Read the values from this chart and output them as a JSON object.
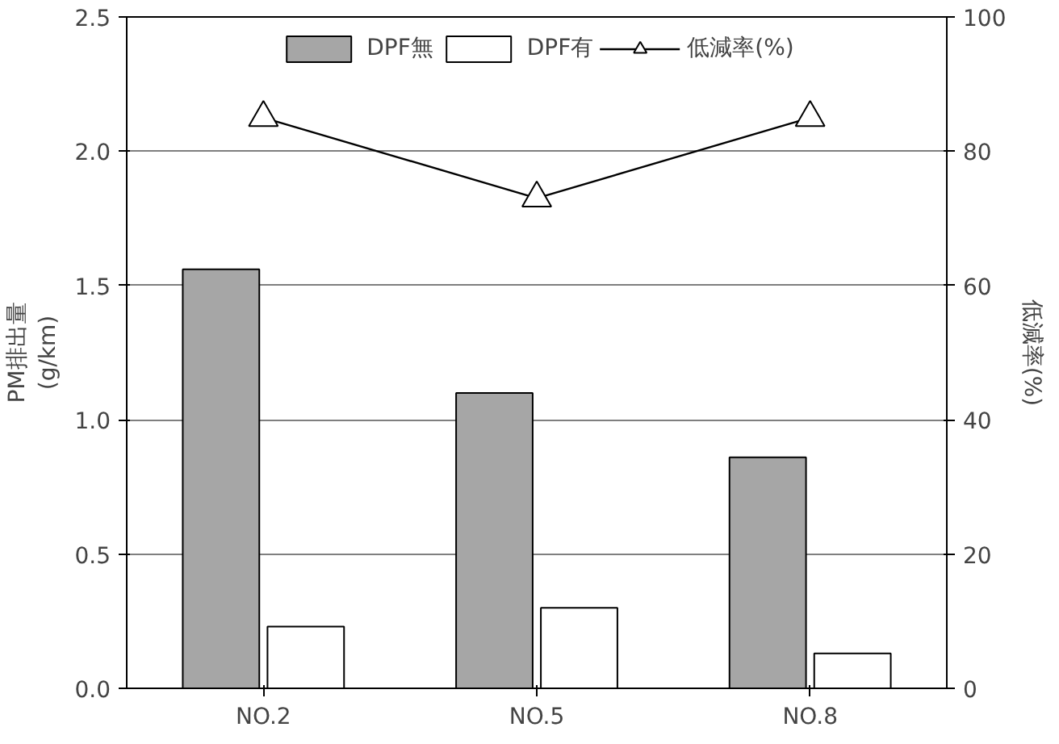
{
  "chart_data": {
    "type": "bar",
    "categories": [
      "NO.2",
      "NO.5",
      "NO.8"
    ],
    "ylabel": "PM排出量\n(g/km)",
    "y2label": "低減率(%)",
    "ylim": [
      0,
      2.5
    ],
    "yticks": [
      {
        "value": 0,
        "label": "0.0"
      },
      {
        "value": 0.5,
        "label": "0.5"
      },
      {
        "value": 1,
        "label": "1.0"
      },
      {
        "value": 1.5,
        "label": "1.5"
      },
      {
        "value": 2,
        "label": "2.0"
      },
      {
        "value": 2.5,
        "label": "2.5"
      }
    ],
    "y2lim": [
      0,
      100
    ],
    "y2ticks": [
      0,
      20,
      40,
      60,
      80,
      100
    ],
    "grid": "y",
    "legend": "top",
    "series": [
      {
        "name": "DPF無",
        "color": "#a6a6a6",
        "values": [
          1.56,
          1.1,
          0.86
        ]
      },
      {
        "name": "DPF有",
        "color": "#ffffff",
        "values": [
          0.23,
          0.3,
          0.13
        ]
      },
      {
        "name": "低減率(%)",
        "type": "line",
        "axis": "y2",
        "color": "#000000",
        "marker": "triangle",
        "values": [
          85,
          73,
          85
        ]
      }
    ]
  }
}
